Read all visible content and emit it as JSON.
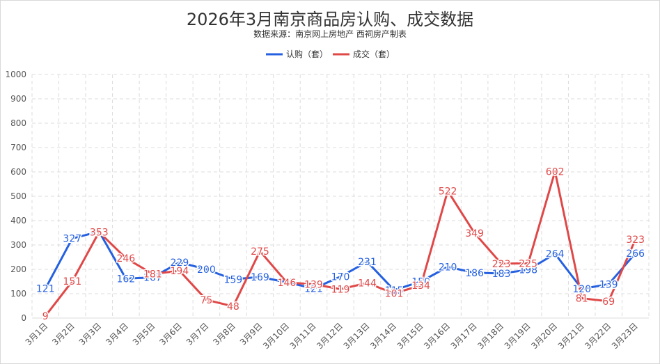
{
  "colors": {
    "series_0": "#2460e0",
    "series_1": "#e04848",
    "grid": "#dcdcdc",
    "text": "#333333",
    "axis_text": "#555555"
  },
  "chart_data": {
    "type": "line",
    "title": "2026年3月南京商品房认购、成交数据",
    "subtitle": "数据来源：南京网上房地产  西祠房产制表",
    "categories": [
      "3月1日",
      "3月2日",
      "3月3日",
      "3月4日",
      "3月5日",
      "3月6日",
      "3月7日",
      "3月8日",
      "3月9日",
      "3月10日",
      "3月11日",
      "3月12日",
      "3月13日",
      "3月14日",
      "3月15日",
      "3月16日",
      "3月17日",
      "3月18日",
      "3月19日",
      "3月20日",
      "3月21日",
      "3月22日",
      "3月23日"
    ],
    "yticks": [
      "0",
      "100",
      "200",
      "300",
      "400",
      "500",
      "600",
      "700",
      "800",
      "900",
      "1000"
    ],
    "ylim": [
      0,
      1000
    ],
    "grid": true,
    "legend": "top-center",
    "series": [
      {
        "name": "认购（套）",
        "values": [
          121,
          327,
          355,
          162,
          167,
          229,
          200,
          159,
          169,
          147,
          121,
          170,
          231,
          115,
          150,
          210,
          186,
          183,
          198,
          264,
          120,
          139,
          266
        ]
      },
      {
        "name": "成交（套）",
        "values": [
          9,
          151,
          353,
          246,
          181,
          194,
          75,
          48,
          275,
          146,
          139,
          119,
          144,
          101,
          134,
          522,
          349,
          223,
          225,
          602,
          81,
          69,
          323
        ]
      }
    ]
  }
}
